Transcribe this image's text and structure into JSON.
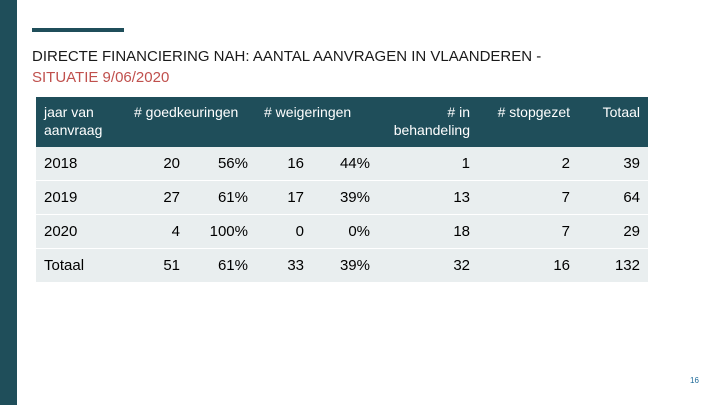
{
  "title": {
    "line1": "DIRECTE FINANCIERING NAH: AANTAL AANVRAGEN IN VLAANDEREN -",
    "line2": "SITUATIE 9/06/2020"
  },
  "table": {
    "headers": {
      "jaar": "jaar van aanvraag",
      "goedkeuringen": "# goedkeuringen",
      "weigeringen": "# weigeringen",
      "behandeling": "# in behandeling",
      "stopgezet": "# stopgezet",
      "totaal": "Totaal"
    },
    "rows": [
      {
        "jaar": "2018",
        "goed": "20",
        "goed_pct": "56%",
        "weig": "16",
        "weig_pct": "44%",
        "behandeling": "1",
        "stopgezet": "2",
        "totaal": "39"
      },
      {
        "jaar": "2019",
        "goed": "27",
        "goed_pct": "61%",
        "weig": "17",
        "weig_pct": "39%",
        "behandeling": "13",
        "stopgezet": "7",
        "totaal": "64"
      },
      {
        "jaar": "2020",
        "goed": "4",
        "goed_pct": "100%",
        "weig": "0",
        "weig_pct": "0%",
        "behandeling": "18",
        "stopgezet": "7",
        "totaal": "29"
      },
      {
        "jaar": "Totaal",
        "goed": "51",
        "goed_pct": "61%",
        "weig": "33",
        "weig_pct": "39%",
        "behandeling": "32",
        "stopgezet": "16",
        "totaal": "132"
      }
    ]
  },
  "slide_number": "16",
  "colors": {
    "accent": "#1f4e5a",
    "subtitle": "#c0504d",
    "row_bg": "#e9eeef"
  }
}
